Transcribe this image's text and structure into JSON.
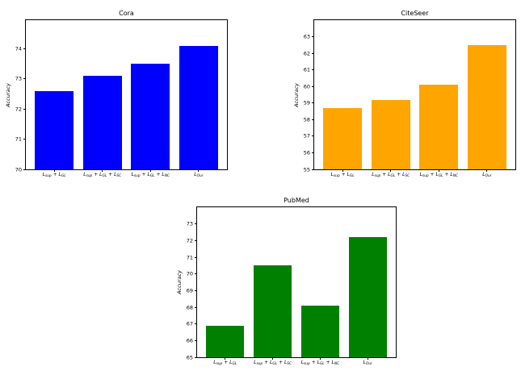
{
  "figure": {
    "background": "#ffffff",
    "text_color": "#000000",
    "spine_color": "#000000"
  },
  "chart_data": [
    {
      "type": "bar",
      "title": "Cora",
      "xlabel": "",
      "ylabel": "Accuracy",
      "bar_color": "#0000ff",
      "categories": [
        "L_{sup} + L_{GL}",
        "L_{sup} + L_{GL} + L_{SC}",
        "L_{sup} + L_{GL} + L_{NC}",
        "L_{Our}"
      ],
      "values": [
        72.6,
        73.1,
        73.5,
        74.1
      ],
      "ylim": [
        70,
        74.95
      ],
      "yticks": [
        70,
        71,
        72,
        73,
        74
      ],
      "grid": false,
      "legend": null
    },
    {
      "type": "bar",
      "title": "CiteSeer",
      "xlabel": "",
      "ylabel": "Accuracy",
      "bar_color": "#ffa500",
      "categories": [
        "L_{sup} + L_{GL}",
        "L_{sup} + L_{GL} + L_{SC}",
        "L_{sup} + L_{GL} + L_{NC}",
        "L_{Our}"
      ],
      "values": [
        58.7,
        59.2,
        60.1,
        62.5
      ],
      "ylim": [
        55,
        64.0
      ],
      "yticks": [
        55,
        56,
        57,
        58,
        59,
        60,
        61,
        62,
        63
      ],
      "grid": false,
      "legend": null
    },
    {
      "type": "bar",
      "title": "PubMed",
      "xlabel": "",
      "ylabel": "Accuracy",
      "bar_color": "#008000",
      "categories": [
        "L_{sup} + L_{GL}",
        "L_{sup} + L_{GL} + L_{SC}",
        "L_{sup} + L_{GL} + L_{NC}",
        "L_{Our}"
      ],
      "values": [
        66.9,
        70.5,
        68.1,
        72.2
      ],
      "ylim": [
        65,
        74.0
      ],
      "yticks": [
        65,
        66,
        67,
        68,
        69,
        70,
        71,
        72,
        73
      ],
      "grid": false,
      "legend": null
    }
  ]
}
